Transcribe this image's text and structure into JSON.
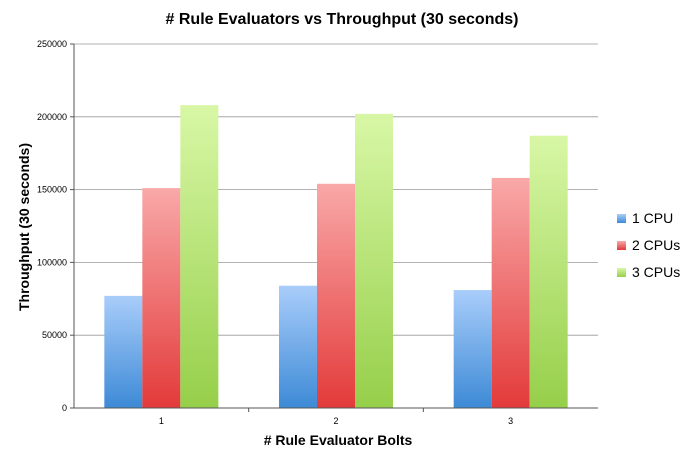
{
  "chart_data": {
    "type": "bar",
    "title": "# Rule Evaluators vs Throughput (30 seconds)",
    "xlabel": "# Rule Evaluator Bolts",
    "ylabel": "Throughput (30 seconds)",
    "categories": [
      "1",
      "2",
      "3"
    ],
    "ylim": [
      0,
      250000
    ],
    "yticks": [
      0,
      50000,
      100000,
      150000,
      200000,
      250000
    ],
    "grid": true,
    "legend": "right",
    "series": [
      {
        "name": "1 CPU",
        "values": [
          77000,
          84000,
          81000
        ],
        "color_top": "#a9cdfa",
        "color_bottom": "#3d8ad6"
      },
      {
        "name": "2 CPUs",
        "values": [
          151000,
          154000,
          158000
        ],
        "color_top": "#f9a8a8",
        "color_bottom": "#e33a3a"
      },
      {
        "name": "3 CPUs",
        "values": [
          208000,
          202000,
          187000
        ],
        "color_top": "#d8f7a6",
        "color_bottom": "#96cf4a"
      }
    ]
  }
}
